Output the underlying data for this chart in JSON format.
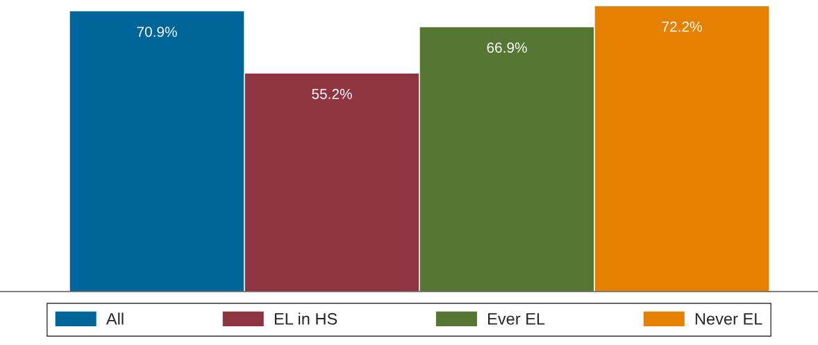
{
  "chart_data": {
    "type": "bar",
    "categories": [
      null
    ],
    "series": [
      {
        "name": "All",
        "color": "#006699",
        "values": [
          70.9
        ],
        "value_labels": [
          "70.9%"
        ]
      },
      {
        "name": "EL in HS",
        "color": "#8f3441",
        "values": [
          55.2
        ],
        "value_labels": [
          "55.2%"
        ]
      },
      {
        "name": "Ever EL",
        "color": "#557733",
        "values": [
          66.9
        ],
        "value_labels": [
          "66.9%"
        ]
      },
      {
        "name": "Never EL",
        "color": "#e68000",
        "values": [
          72.2
        ],
        "value_labels": [
          "72.2%"
        ]
      }
    ],
    "legend": "bottom"
  }
}
